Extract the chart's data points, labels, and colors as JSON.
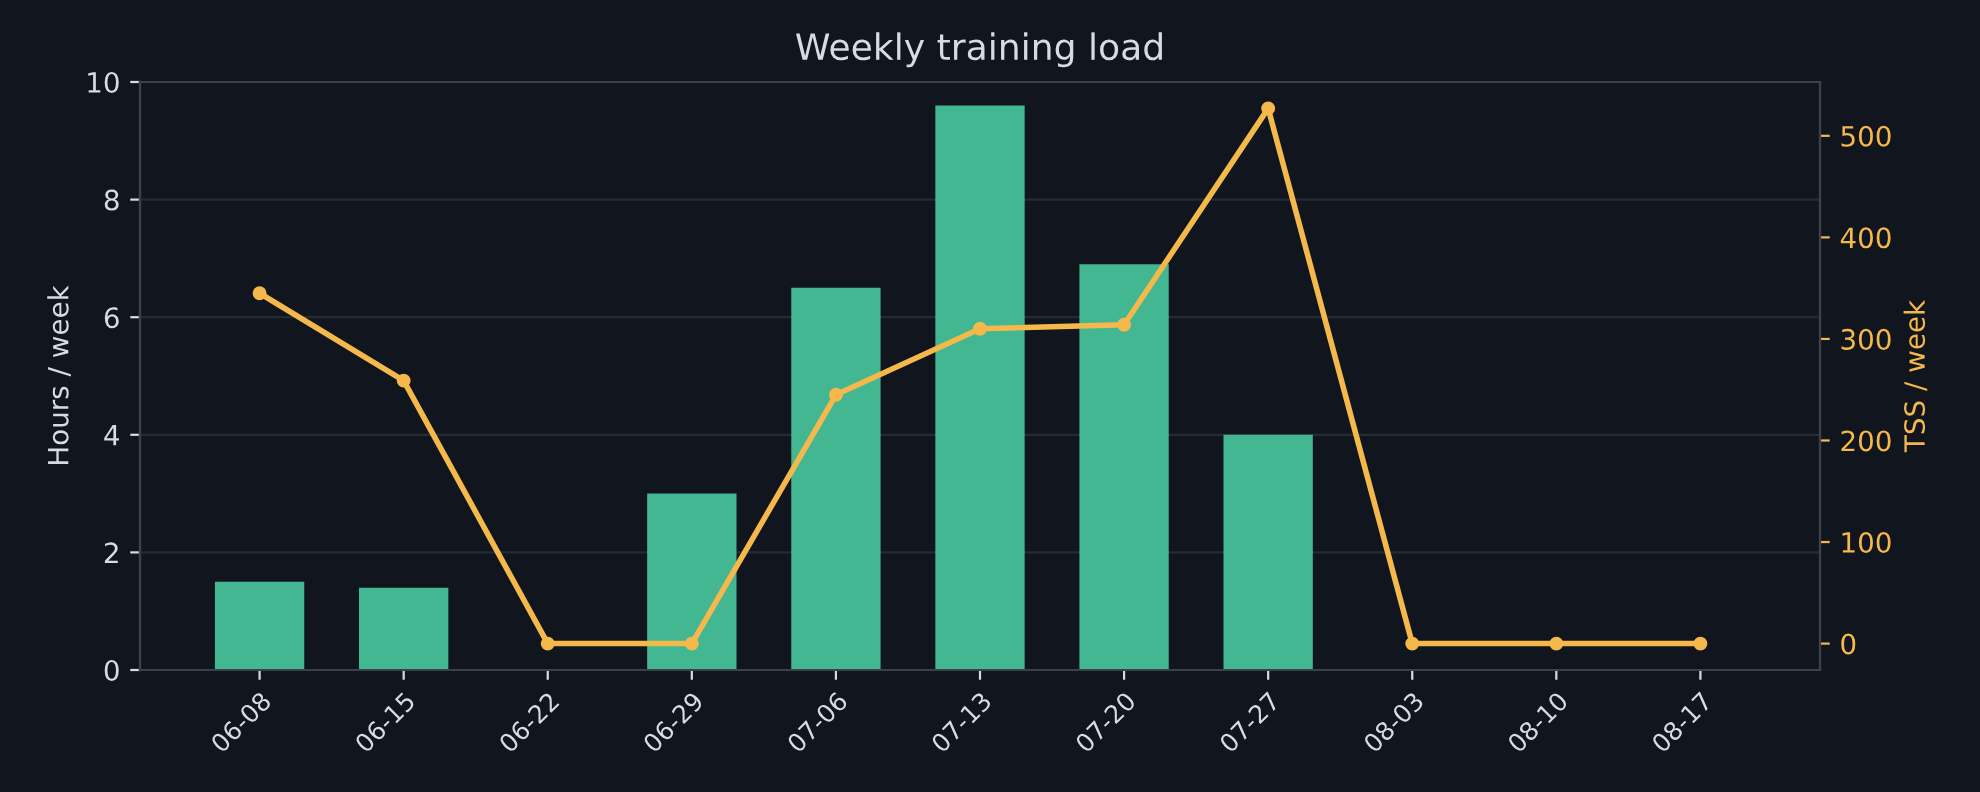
{
  "chart_data": {
    "type": "bar",
    "title": "Weekly training load",
    "ylabel": "Hours / week",
    "y2label": "TSS / week",
    "categories": [
      "06-08",
      "06-15",
      "06-22",
      "06-29",
      "07-06",
      "07-13",
      "07-20",
      "07-27",
      "08-03",
      "08-10",
      "08-17"
    ],
    "series": [
      {
        "color": "#43b692",
        "values": [
          1.5,
          1.4,
          0,
          3.0,
          6.5,
          9.6,
          6.9,
          4.0,
          0,
          0,
          0
        ]
      },
      {
        "type": "line",
        "axis": "y2",
        "color": "#f5b84a",
        "marker": "circle",
        "values": [
          345,
          259,
          0,
          0,
          245,
          310,
          314,
          527,
          0,
          0,
          0
        ]
      }
    ],
    "ylim": [
      0,
      10
    ],
    "yticks": [
      0,
      2,
      4,
      6,
      8,
      10
    ],
    "y2lim": [
      -26,
      553
    ],
    "y2ticks": [
      0,
      100,
      200,
      300,
      400,
      500
    ],
    "grid": "y"
  }
}
